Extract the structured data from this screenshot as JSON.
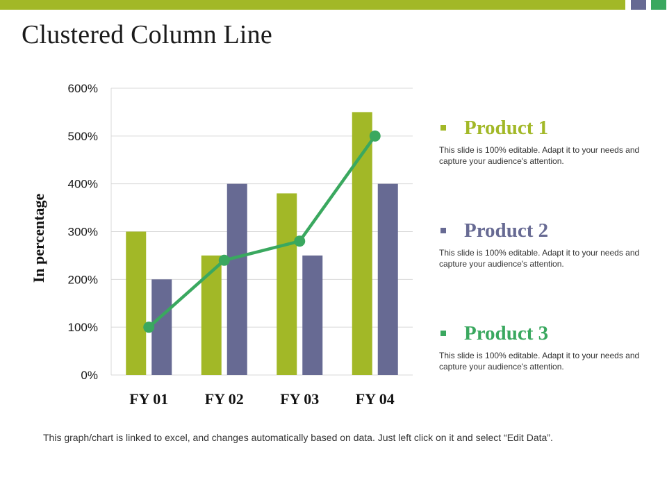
{
  "slide": {
    "title": "Clustered Column Line",
    "footnote": "This graph/chart is linked to excel, and changes automatically based on data. Just left click on it and select “Edit Data”."
  },
  "theme": {
    "green_olive": "#a2b827",
    "slate_purple": "#676a93",
    "green": "#3aa85f",
    "gridline": "#d9d9d9"
  },
  "legend": [
    {
      "name": "Product 1",
      "color": "#a2b827",
      "description": "This slide is 100% editable. Adapt it to your needs and capture your audience's attention."
    },
    {
      "name": "Product 2",
      "color": "#676a93",
      "description": "This slide is 100% editable. Adapt it to your needs and capture your audience's attention."
    },
    {
      "name": "Product 3",
      "color": "#3aa85f",
      "description": "This slide is 100% editable. Adapt it to your needs and capture your audience's attention."
    }
  ],
  "chart_data": {
    "type": "bar",
    "categories": [
      "FY 01",
      "FY 02",
      "FY 03",
      "FY 04"
    ],
    "series": [
      {
        "name": "Product 1",
        "type": "bar",
        "color": "#a2b827",
        "values": [
          300,
          250,
          380,
          550
        ]
      },
      {
        "name": "Product 2",
        "type": "bar",
        "color": "#676a93",
        "values": [
          200,
          400,
          250,
          400
        ]
      },
      {
        "name": "Product 3",
        "type": "line",
        "color": "#3aa85f",
        "values": [
          100,
          240,
          280,
          500
        ]
      }
    ],
    "ylabel": "In percentage",
    "ylim": [
      0,
      600
    ],
    "yticks": [
      0,
      100,
      200,
      300,
      400,
      500,
      600
    ],
    "ytick_labels": [
      "0%",
      "100%",
      "200%",
      "300%",
      "400%",
      "500%",
      "600%"
    ],
    "grid": true,
    "legend_position": "right"
  }
}
